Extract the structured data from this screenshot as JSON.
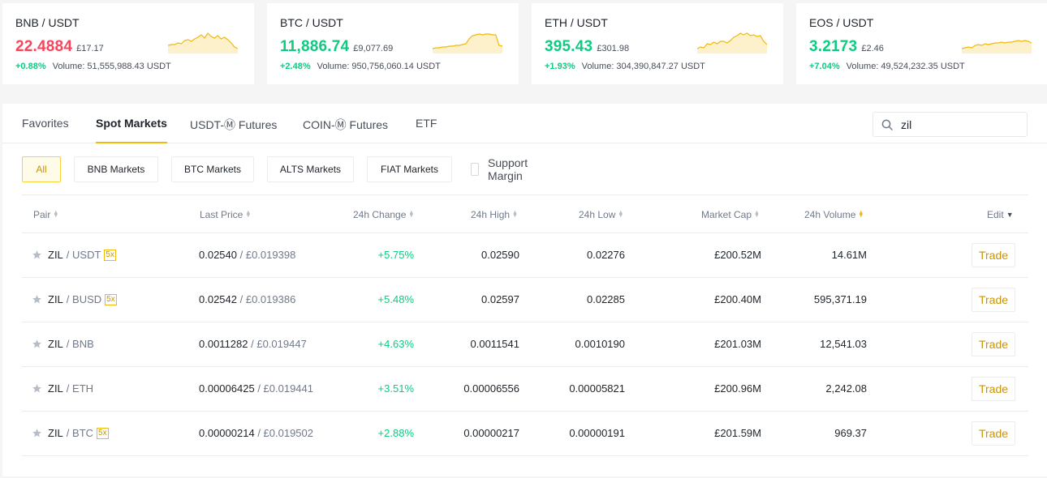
{
  "tickers": [
    {
      "pair": "BNB / USDT",
      "price": "22.4884",
      "fiat": "£17.17",
      "change": "+0.88%",
      "volume": "Volume: 51,555,988.43 USDT",
      "price_color": "#f6465d",
      "spark": [
        18,
        17,
        17,
        15,
        16,
        12,
        11,
        13,
        10,
        8,
        5,
        9,
        3,
        7,
        9,
        6,
        10,
        8,
        11,
        15,
        20,
        22
      ]
    },
    {
      "pair": "BTC / USDT",
      "price": "11,886.74",
      "fiat": "£9,077.69",
      "change": "+2.48%",
      "volume": "Volume: 950,756,060.14 USDT",
      "price_color": "#0ecb81",
      "spark": [
        22,
        21,
        21,
        20,
        20,
        19,
        19,
        18,
        18,
        17,
        16,
        10,
        6,
        5,
        4,
        5,
        4,
        4,
        5,
        5,
        18,
        19
      ]
    },
    {
      "pair": "ETH / USDT",
      "price": "395.43",
      "fiat": "£301.98",
      "change": "+1.93%",
      "volume": "Volume: 304,390,847.27 USDT",
      "price_color": "#0ecb81",
      "spark": [
        22,
        20,
        21,
        16,
        17,
        14,
        16,
        13,
        13,
        15,
        12,
        8,
        6,
        3,
        5,
        3,
        6,
        5,
        7,
        6,
        13,
        17
      ]
    },
    {
      "pair": "EOS / USDT",
      "price": "3.2173",
      "fiat": "£2.46",
      "change": "+7.04%",
      "volume": "Volume: 49,524,232.35 USDT",
      "price_color": "#0ecb81",
      "spark": [
        22,
        21,
        20,
        21,
        18,
        17,
        18,
        16,
        17,
        16,
        15,
        15,
        14,
        15,
        14,
        14,
        13,
        12,
        13,
        12,
        13,
        15
      ]
    }
  ],
  "tabs": [
    "Favorites",
    "Spot Markets",
    "USDT-Ⓜ Futures",
    "COIN-Ⓜ Futures",
    "ETF"
  ],
  "search": {
    "value": "zil"
  },
  "filters": [
    "All",
    "BNB Markets",
    "BTC Markets",
    "ALTS Markets",
    "FIAT Markets"
  ],
  "support_margin": "Support Margin",
  "columns": {
    "pair": "Pair",
    "last": "Last Price",
    "change": "24h Change",
    "high": "24h High",
    "low": "24h Low",
    "cap": "Market Cap",
    "vol": "24h Volume",
    "edit": "Edit"
  },
  "rows": [
    {
      "base": "ZIL",
      "quote": "/ USDT",
      "lev": "5x",
      "last": "0.02540",
      "fiat": "/ £0.019398",
      "change": "+5.75%",
      "high": "0.02590",
      "low": "0.02276",
      "cap": "£200.52M",
      "vol": "14.61M",
      "action": "Trade"
    },
    {
      "base": "ZIL",
      "quote": "/ BUSD",
      "lev": "5x",
      "last": "0.02542",
      "fiat": "/ £0.019386",
      "change": "+5.48%",
      "high": "0.02597",
      "low": "0.02285",
      "cap": "£200.40M",
      "vol": "595,371.19",
      "action": "Trade"
    },
    {
      "base": "ZIL",
      "quote": "/ BNB",
      "lev": "",
      "last": "0.0011282",
      "fiat": "/ £0.019447",
      "change": "+4.63%",
      "high": "0.0011541",
      "low": "0.0010190",
      "cap": "£201.03M",
      "vol": "12,541.03",
      "action": "Trade"
    },
    {
      "base": "ZIL",
      "quote": "/ ETH",
      "lev": "",
      "last": "0.00006425",
      "fiat": "/ £0.019441",
      "change": "+3.51%",
      "high": "0.00006556",
      "low": "0.00005821",
      "cap": "£200.96M",
      "vol": "2,242.08",
      "action": "Trade"
    },
    {
      "base": "ZIL",
      "quote": "/ BTC",
      "lev": "5x",
      "last": "0.00000214",
      "fiat": "/ £0.019502",
      "change": "+2.88%",
      "high": "0.00000217",
      "low": "0.00000191",
      "cap": "£201.59M",
      "vol": "969.37",
      "action": "Trade"
    }
  ],
  "colors": {
    "accent": "#f0b90b",
    "up": "#0ecb81",
    "down": "#f6465d"
  }
}
